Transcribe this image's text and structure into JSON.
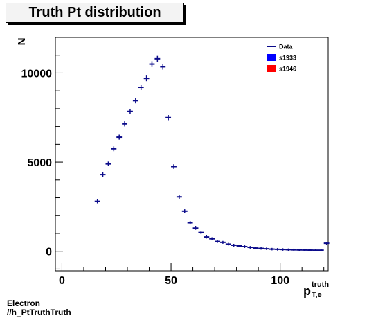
{
  "title": "Truth Pt distribution",
  "footer": {
    "line1": "Electron",
    "line2": "//h_PtTruthTruth"
  },
  "chart_data": {
    "type": "scatter",
    "title": "Truth Pt distribution",
    "ylabel": "N",
    "xlabel": {
      "main": "p",
      "sup": "truth",
      "sub": "T,e"
    },
    "xlim": [
      -3,
      122
    ],
    "ylim": [
      -1100,
      12000
    ],
    "xticks": [
      0,
      50,
      100
    ],
    "yticks": [
      0,
      5000,
      10000
    ],
    "grid": false,
    "legend": {
      "position": "top-right",
      "entries": [
        {
          "label": "Data",
          "style": "line",
          "color": "#0a0a8a"
        },
        {
          "label": "s1933",
          "style": "box",
          "color": "#0000ff"
        },
        {
          "label": "s1946",
          "style": "box",
          "color": "#ff0000"
        }
      ]
    },
    "bin_width": 2.5,
    "series": [
      {
        "name": "s1933",
        "color": "#0a0a8a",
        "x": [
          16.25,
          18.75,
          21.25,
          23.75,
          26.25,
          28.75,
          31.25,
          33.75,
          36.25,
          38.75,
          41.25,
          43.75,
          46.25,
          48.75,
          51.25,
          53.75,
          56.25,
          58.75,
          61.25,
          63.75,
          66.25,
          68.75,
          71.25,
          73.75,
          76.25,
          78.75,
          81.25,
          83.75,
          86.25,
          88.75,
          91.25,
          93.75,
          96.25,
          98.75,
          101.25,
          103.75,
          106.25,
          108.75,
          111.25,
          113.75,
          116.25,
          118.75,
          121.25
        ],
        "y": [
          2800,
          4300,
          4900,
          5750,
          6400,
          7150,
          7850,
          8450,
          9200,
          9700,
          10500,
          10800,
          10350,
          7500,
          4750,
          3050,
          2250,
          1600,
          1300,
          1050,
          800,
          700,
          550,
          500,
          400,
          340,
          300,
          260,
          220,
          180,
          160,
          140,
          120,
          110,
          100,
          90,
          80,
          75,
          70,
          65,
          60,
          60,
          450
        ]
      }
    ]
  }
}
